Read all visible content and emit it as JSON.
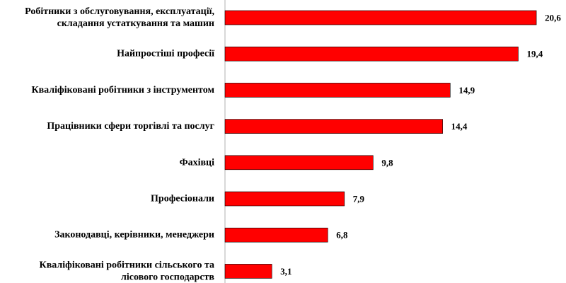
{
  "chart_data": {
    "type": "bar",
    "orientation": "horizontal",
    "categories": [
      [
        "Робітники з обслуговування, експлуатації,",
        "складання устаткування та машин"
      ],
      [
        "Найпростіші професії"
      ],
      [
        "Кваліфіковані робітники з інструментом"
      ],
      [
        "Працівники сфери торгівлі та послуг"
      ],
      [
        "Фахівці"
      ],
      [
        "Професіонали"
      ],
      [
        "Законодавці, керівники, менеджери"
      ],
      [
        "Кваліфіковані робітники сільського та",
        "лісового господарств"
      ]
    ],
    "values": [
      20.6,
      19.4,
      14.9,
      14.4,
      9.8,
      7.9,
      6.8,
      3.1
    ],
    "value_labels": [
      "20,6",
      "19,4",
      "14,9",
      "14,4",
      "9,8",
      "7,9",
      "6,8",
      "3,1"
    ],
    "xlim": [
      0,
      22
    ],
    "grid": false,
    "legend": "none",
    "colors": {
      "bar": "#ff0000",
      "bar_outline": "#000000",
      "axis": "#b0b0b0",
      "text": "#000000"
    }
  }
}
